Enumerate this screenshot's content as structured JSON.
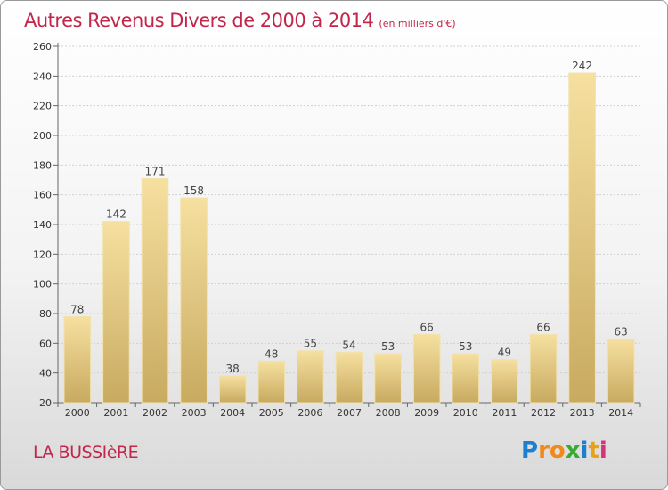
{
  "header": {
    "title": "Autres Revenus Divers de 2000 à 2014",
    "subtitle": "(en milliers d'€)"
  },
  "footer": {
    "commune": "LA BUSSIèRE",
    "logo": {
      "letters": [
        "P",
        "r",
        "o",
        "x",
        "i",
        "t",
        "i"
      ],
      "colors": [
        "#1e7fd0",
        "#f08a1c",
        "#f08a1c",
        "#3aa935",
        "#1e7fd0",
        "#e8a21a",
        "#d6337a"
      ]
    }
  },
  "colors": {
    "bar_top": "#f6e0a0",
    "bar_bottom": "#c8aa60",
    "text": "#c4254a"
  },
  "chart_data": {
    "type": "bar",
    "title": "Autres Revenus Divers de 2000 à 2014",
    "subtitle": "(en milliers d'€)",
    "categories": [
      "2000",
      "2001",
      "2002",
      "2003",
      "2004",
      "2005",
      "2006",
      "2007",
      "2008",
      "2009",
      "2010",
      "2011",
      "2012",
      "2013",
      "2014"
    ],
    "values": [
      78,
      142,
      171,
      158,
      38,
      48,
      55,
      54,
      53,
      66,
      53,
      49,
      66,
      242,
      63
    ],
    "ylim": [
      20,
      260
    ],
    "yticks": [
      20,
      40,
      60,
      80,
      100,
      120,
      140,
      160,
      180,
      200,
      220,
      240,
      260
    ],
    "grid": true,
    "legend": "none"
  }
}
